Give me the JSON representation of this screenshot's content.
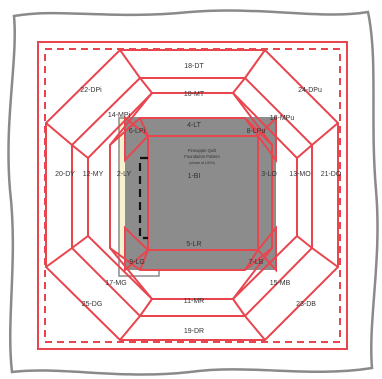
{
  "pattern": {
    "title_line1": "Pineapple Quilt",
    "title_line2": "Foundation Pattern",
    "title_line3": "(shown at 100%)"
  },
  "labels": {
    "center": "1-BI",
    "top_inner": "4-LT",
    "bottom_inner": "5-LR",
    "left_inner": "2-LY",
    "right_inner": "3-LO",
    "corner_tl": "6-LPi",
    "corner_tr": "8-LPu",
    "corner_bl": "9-LG",
    "corner_br": "7-LB",
    "top_mid": "10-MT",
    "bottom_mid": "11-MR",
    "left_mid": "12-MY",
    "right_mid": "13-MO",
    "diag_tl_mid": "14-MPi",
    "diag_tr_mid": "16-MPu",
    "diag_bl_mid": "17-MG",
    "diag_br_mid": "15-MB",
    "top_outer": "18-DT",
    "bottom_outer": "19-DR",
    "left_outer": "20-DY",
    "right_outer": "21-DO",
    "diag_tl_outer": "22-DPi",
    "diag_tr_outer": "24-DPu",
    "diag_bl_outer": "25-DG",
    "diag_br_outer": "23-DB"
  },
  "colors": {
    "line_red": "#e8454f",
    "center_gray": "#8c8c8c",
    "outline_gray": "#8a8a8a",
    "cream": "#f6f1cf"
  }
}
